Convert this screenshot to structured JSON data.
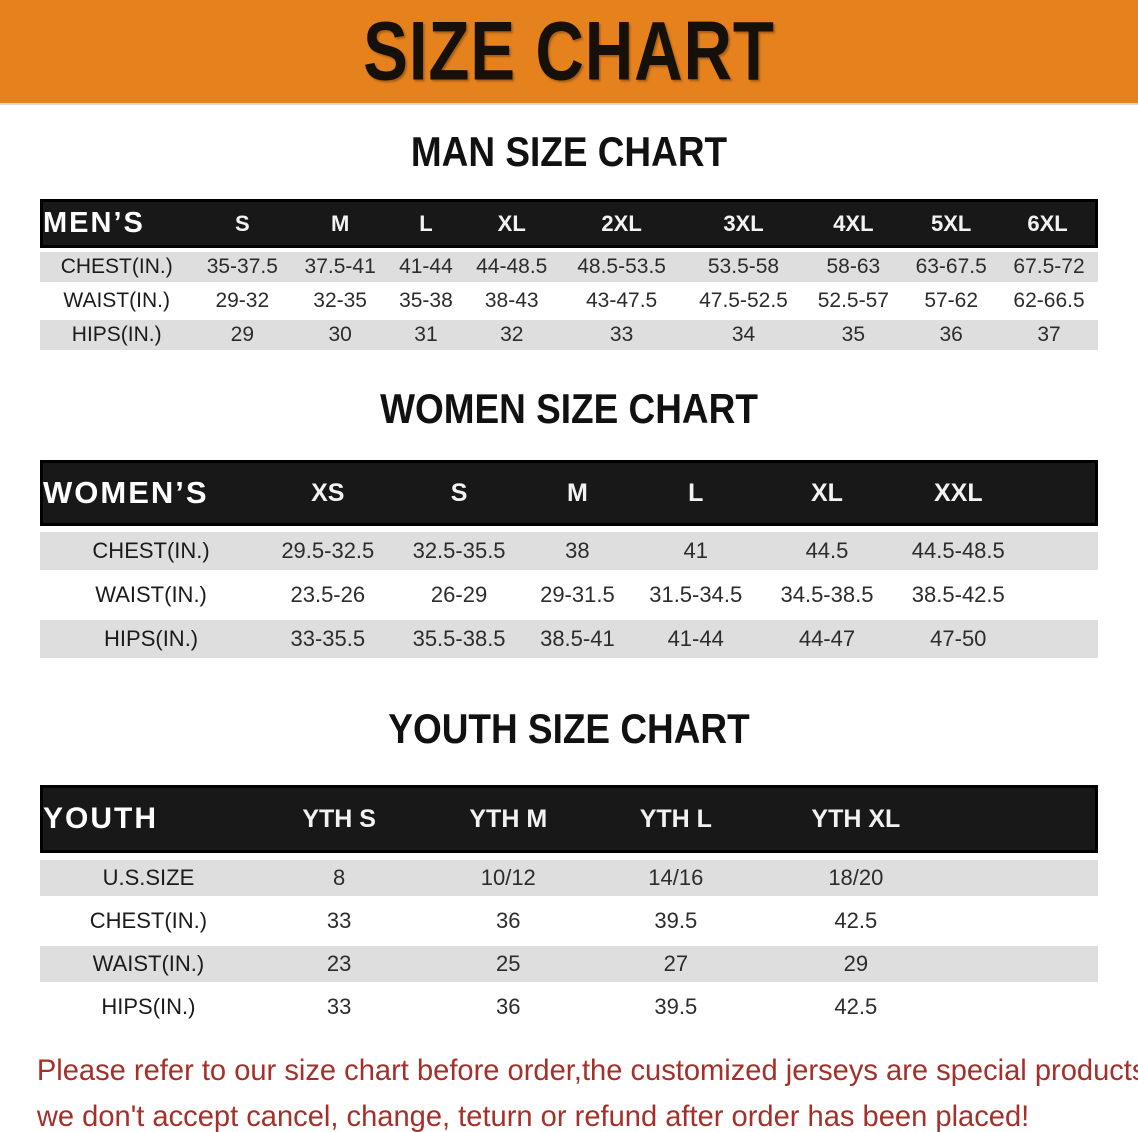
{
  "banner": {
    "title": "SIZE CHART"
  },
  "colors": {
    "banner_orange": "#E5821E",
    "table_header_black": "#181818",
    "row_gray": "#DEDEDE",
    "disclaimer_red": "#A5302A"
  },
  "sections": {
    "men": {
      "heading": "MAN SIZE CHART",
      "table": {
        "header": [
          "MEN’S",
          "S",
          "M",
          "L",
          "XL",
          "2XL",
          "3XL",
          "4XL",
          "5XL",
          "6XL"
        ],
        "rows": [
          {
            "label": "CHEST(IN.)",
            "values": [
              "35-37.5",
              "37.5-41",
              "41-44",
              "44-48.5",
              "48.5-53.5",
              "53.5-58",
              "58-63",
              "63-67.5",
              "67.5-72"
            ]
          },
          {
            "label": "WAIST(IN.)",
            "values": [
              "29-32",
              "32-35",
              "35-38",
              "38-43",
              "43-47.5",
              "47.5-52.5",
              "52.5-57",
              "57-62",
              "62-66.5"
            ]
          },
          {
            "label": "HIPS(IN.)",
            "values": [
              "29",
              "30",
              "31",
              "32",
              "33",
              "34",
              "35",
              "36",
              "37"
            ]
          }
        ]
      }
    },
    "women": {
      "heading": "WOMEN SIZE CHART",
      "table": {
        "header": [
          "WOMEN’S",
          "XS",
          "S",
          "M",
          "L",
          "XL",
          "XXL"
        ],
        "rows": [
          {
            "label": "CHEST(IN.)",
            "values": [
              "29.5-32.5",
              "32.5-35.5",
              "38",
              "41",
              "44.5",
              "44.5-48.5"
            ]
          },
          {
            "label": "WAIST(IN.)",
            "values": [
              "23.5-26",
              "26-29",
              "29-31.5",
              "31.5-34.5",
              "34.5-38.5",
              "38.5-42.5"
            ]
          },
          {
            "label": "HIPS(IN.)",
            "values": [
              "33-35.5",
              "35.5-38.5",
              "38.5-41",
              "41-44",
              "44-47",
              "47-50"
            ]
          }
        ]
      }
    },
    "youth": {
      "heading": "YOUTH SIZE CHART",
      "table": {
        "header": [
          "YOUTH",
          "YTH S",
          "YTH M",
          "YTH L",
          "YTH XL"
        ],
        "rows": [
          {
            "label": "U.S.SIZE",
            "values": [
              "8",
              "10/12",
              "14/16",
              "18/20"
            ]
          },
          {
            "label": "CHEST(IN.)",
            "values": [
              "33",
              "36",
              "39.5",
              "42.5"
            ]
          },
          {
            "label": "WAIST(IN.)",
            "values": [
              "23",
              "25",
              "27",
              "29"
            ]
          },
          {
            "label": "HIPS(IN.)",
            "values": [
              "33",
              "36",
              "39.5",
              "42.5"
            ]
          }
        ]
      }
    }
  },
  "footer": {
    "line1": "Please refer to our size chart before order,the customized jerseys are special products,",
    "line2": "we don't accept cancel, change, teturn or refund after order has been placed!"
  }
}
